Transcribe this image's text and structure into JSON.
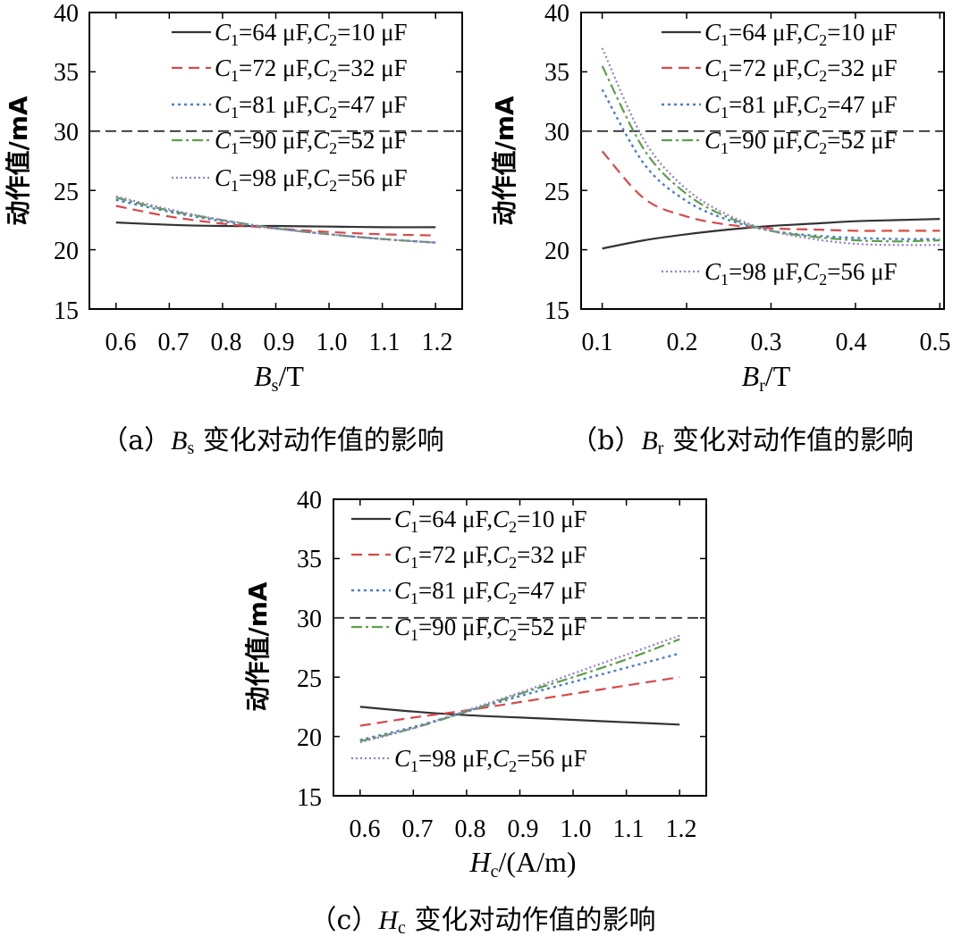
{
  "colors": {
    "s1": "#333333",
    "s2": "#d94848",
    "s3": "#4a7fc8",
    "s4": "#5aa04a",
    "s5": "#9a7ad0",
    "threshold": "#333333"
  },
  "legend_labels": [
    [
      "C",
      "1",
      "=64 μF,",
      "C",
      "2",
      "=10 μF"
    ],
    [
      "C",
      "1",
      "=72 μF,",
      "C",
      "2",
      "=32 μF"
    ],
    [
      "C",
      "1",
      "=81 μF,",
      "C",
      "2",
      "=47 μF"
    ],
    [
      "C",
      "1",
      "=90 μF,",
      "C",
      "2",
      "=52 μF"
    ],
    [
      "C",
      "1",
      "=98 μF,",
      "C",
      "2",
      "=56 μF"
    ]
  ],
  "chart_data": [
    {
      "type": "line",
      "ylabel": "动作值/mA",
      "xlabel": {
        "sym": "B",
        "sub": "s",
        "unit": "/T"
      },
      "caption": {
        "pre": "（a）",
        "sym": "B",
        "sub": "s",
        "post": " 变化对动作值的影响"
      },
      "xlim": [
        0.55,
        1.25
      ],
      "ylim": [
        15,
        40
      ],
      "xticks": [
        "0.6",
        "0.7",
        "0.8",
        "0.9",
        "1.0",
        "1.1",
        "1.2"
      ],
      "yticks": [
        "15",
        "20",
        "25",
        "30",
        "35",
        "40"
      ],
      "threshold": 30,
      "legend_placement": "top-right",
      "x": [
        0.6,
        0.7,
        0.8,
        0.9,
        1.0,
        1.1,
        1.2
      ],
      "series": [
        {
          "values": [
            22.3,
            22.1,
            22.0,
            22.0,
            21.95,
            21.9,
            21.9
          ]
        },
        {
          "values": [
            23.7,
            22.8,
            22.2,
            21.8,
            21.5,
            21.3,
            21.2
          ]
        },
        {
          "values": [
            24.2,
            23.2,
            22.4,
            21.8,
            21.3,
            20.9,
            20.6
          ]
        },
        {
          "values": [
            24.4,
            23.3,
            22.5,
            21.8,
            21.3,
            20.9,
            20.6
          ]
        },
        {
          "values": [
            24.5,
            23.4,
            22.5,
            21.8,
            21.3,
            20.9,
            20.6
          ]
        }
      ]
    },
    {
      "type": "line",
      "ylabel": "动作值/mA",
      "xlabel": {
        "sym": "B",
        "sub": "r",
        "unit": "/T"
      },
      "caption": {
        "pre": "（b）",
        "sym": "B",
        "sub": "r",
        "post": " 变化对动作值的影响"
      },
      "xlim": [
        0.075,
        0.505
      ],
      "ylim": [
        15,
        40
      ],
      "xticks": [
        "0.1",
        "0.2",
        "0.3",
        "0.4",
        "0.5"
      ],
      "yticks": [
        "15",
        "20",
        "25",
        "30",
        "35",
        "40"
      ],
      "threshold": 30,
      "legend_placement": "top-right, last entry bottom-right",
      "x": [
        0.1,
        0.15,
        0.2,
        0.25,
        0.3,
        0.35,
        0.4,
        0.45,
        0.5
      ],
      "series": [
        {
          "values": [
            20.1,
            20.8,
            21.3,
            21.7,
            22.0,
            22.2,
            22.4,
            22.5,
            22.6
          ]
        },
        {
          "values": [
            28.3,
            24.3,
            22.8,
            22.1,
            21.8,
            21.7,
            21.6,
            21.6,
            21.6
          ]
        },
        {
          "values": [
            33.5,
            27.2,
            24.1,
            22.5,
            21.6,
            21.2,
            21.0,
            20.9,
            20.9
          ]
        },
        {
          "values": [
            35.5,
            28.4,
            24.7,
            22.7,
            21.6,
            21.1,
            20.8,
            20.7,
            20.8
          ]
        },
        {
          "values": [
            37.0,
            29.2,
            25.1,
            22.9,
            21.6,
            20.9,
            20.5,
            20.4,
            20.4
          ]
        }
      ]
    },
    {
      "type": "line",
      "ylabel": "动作值/mA",
      "xlabel": {
        "sym": "H",
        "sub": "c",
        "unit": "/(A/m)"
      },
      "caption": {
        "pre": "（c）",
        "sym": "H",
        "sub": "c",
        "post": " 变化对动作值的影响"
      },
      "xlim": [
        0.55,
        1.25
      ],
      "ylim": [
        15,
        40
      ],
      "xticks": [
        "0.6",
        "0.7",
        "0.8",
        "0.9",
        "1.0",
        "1.1",
        "1.2"
      ],
      "yticks": [
        "15",
        "20",
        "25",
        "30",
        "35",
        "40"
      ],
      "threshold": 30,
      "legend_placement": "top-left, last entry bottom-left",
      "x": [
        0.6,
        0.7,
        0.8,
        0.9,
        1.0,
        1.1,
        1.2
      ],
      "series": [
        {
          "values": [
            22.5,
            22.1,
            21.8,
            21.6,
            21.4,
            21.2,
            21.0
          ]
        },
        {
          "values": [
            20.9,
            21.6,
            22.2,
            22.9,
            23.6,
            24.3,
            25.0
          ]
        },
        {
          "values": [
            19.7,
            20.8,
            22.1,
            23.4,
            24.6,
            25.8,
            27.0
          ]
        },
        {
          "values": [
            19.6,
            20.7,
            22.1,
            23.6,
            25.0,
            26.5,
            28.2
          ]
        },
        {
          "values": [
            19.5,
            20.7,
            22.2,
            23.7,
            25.3,
            26.9,
            28.5
          ]
        }
      ]
    }
  ]
}
